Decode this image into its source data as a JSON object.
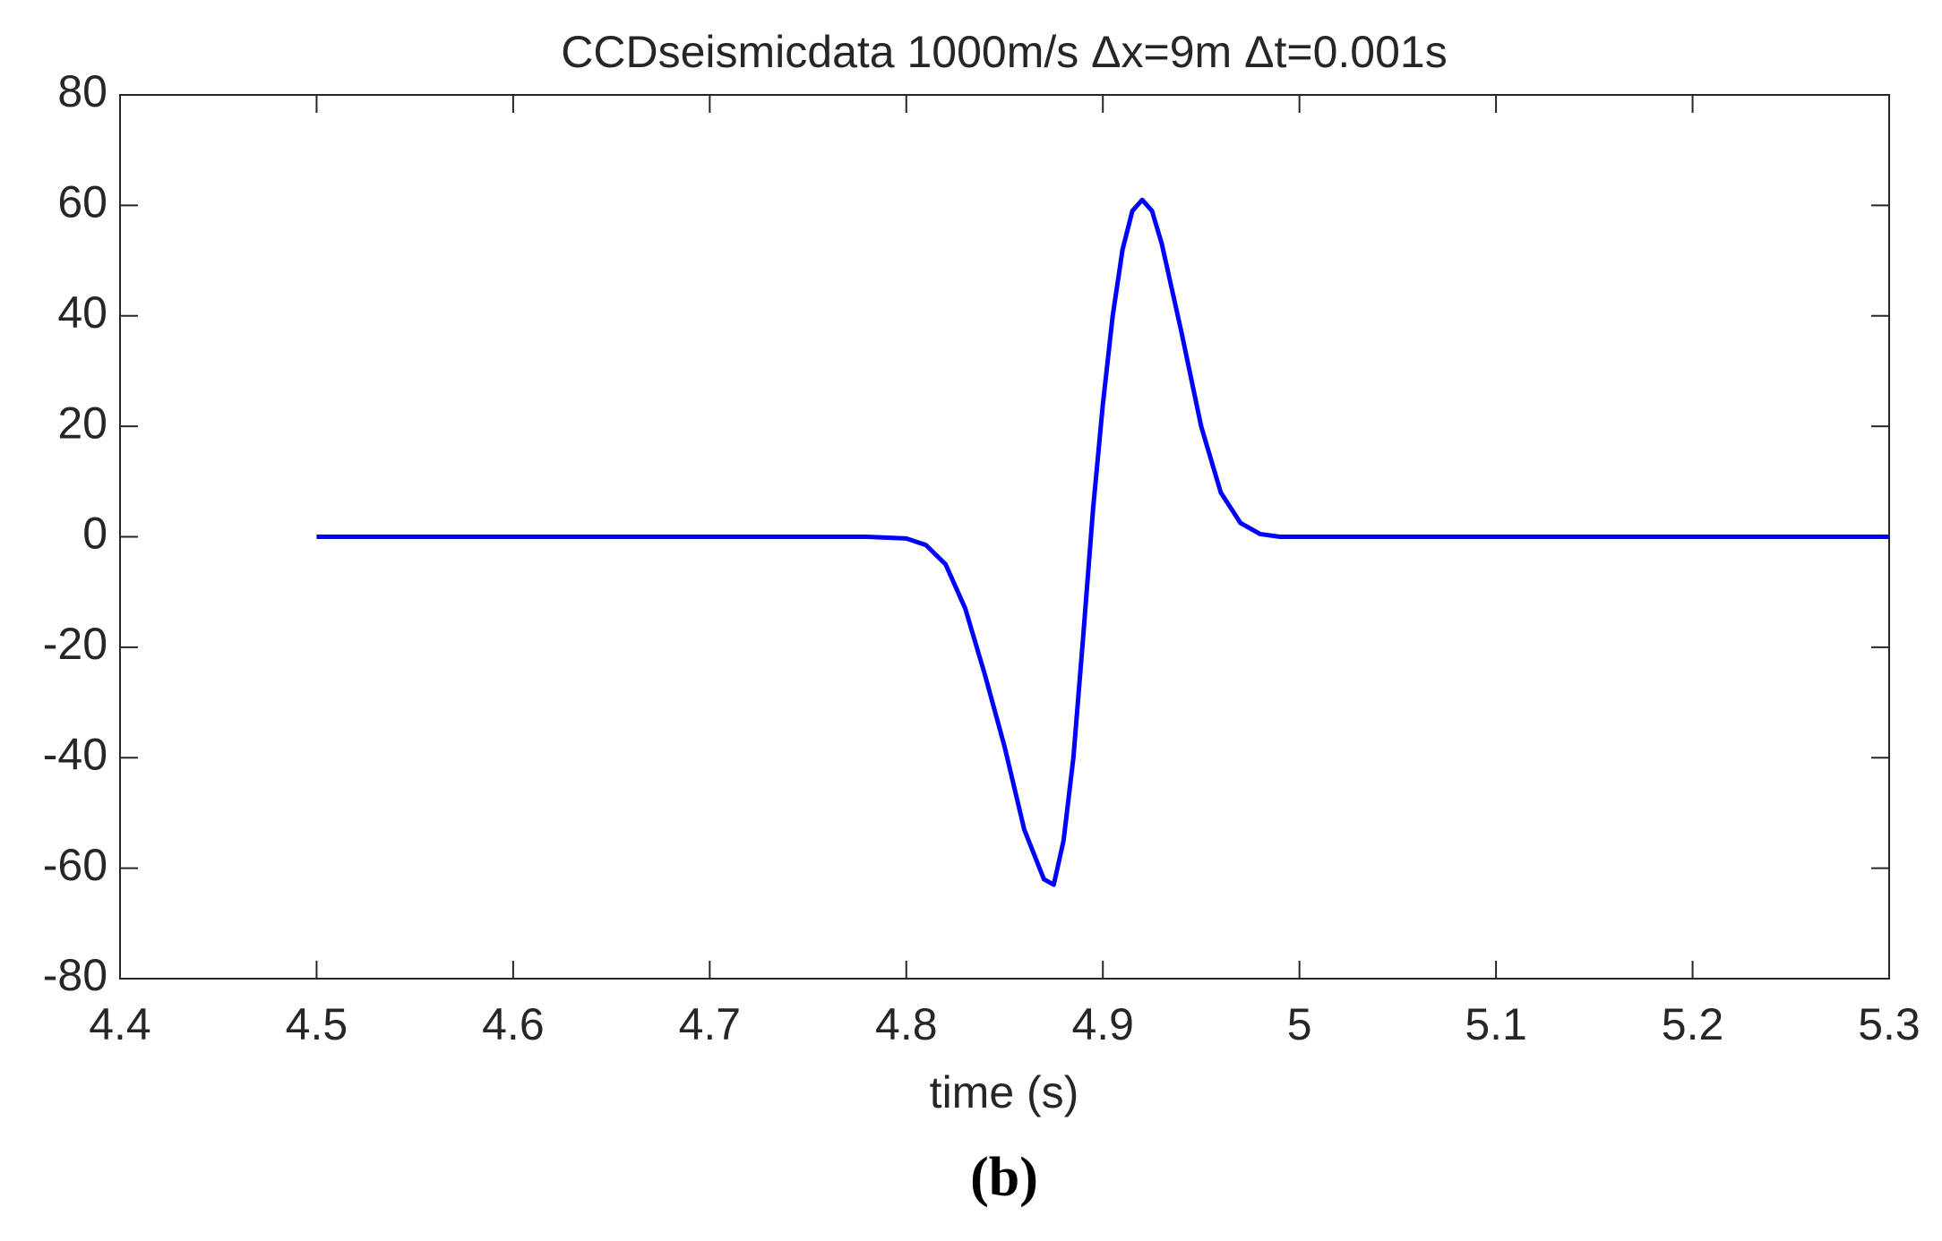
{
  "chart_data": {
    "type": "line",
    "title": "CCDseismicdata 1000m/s Δx=9m Δt=0.001s",
    "x_label": "time (s)",
    "caption": "(b)",
    "x": [
      4.5,
      4.6,
      4.7,
      4.78,
      4.8,
      4.81,
      4.82,
      4.83,
      4.84,
      4.85,
      4.86,
      4.87,
      4.875,
      4.88,
      4.885,
      4.89,
      4.895,
      4.9,
      4.905,
      4.91,
      4.915,
      4.92,
      4.925,
      4.93,
      4.94,
      4.95,
      4.96,
      4.97,
      4.98,
      4.99,
      5.1,
      5.2,
      5.3
    ],
    "series": [
      {
        "color": "#0000ff",
        "values": [
          0,
          0,
          0,
          0,
          -0.3,
          -1.5,
          -5,
          -13,
          -25,
          -38,
          -53,
          -62,
          -63,
          -55,
          -40,
          -18,
          5,
          24,
          40,
          52,
          59,
          61,
          59,
          53,
          37,
          20,
          8,
          2.5,
          0.5,
          0,
          0,
          0,
          0
        ]
      }
    ],
    "xlim": [
      4.4,
      5.3
    ],
    "xticks": [
      4.4,
      4.5,
      4.6,
      4.7,
      4.8,
      4.9,
      5,
      5.1,
      5.2,
      5.3
    ],
    "ylim": [
      -80,
      80
    ],
    "yticks": [
      -80,
      -60,
      -40,
      -20,
      0,
      20,
      40,
      60,
      80
    ],
    "grid": false
  }
}
